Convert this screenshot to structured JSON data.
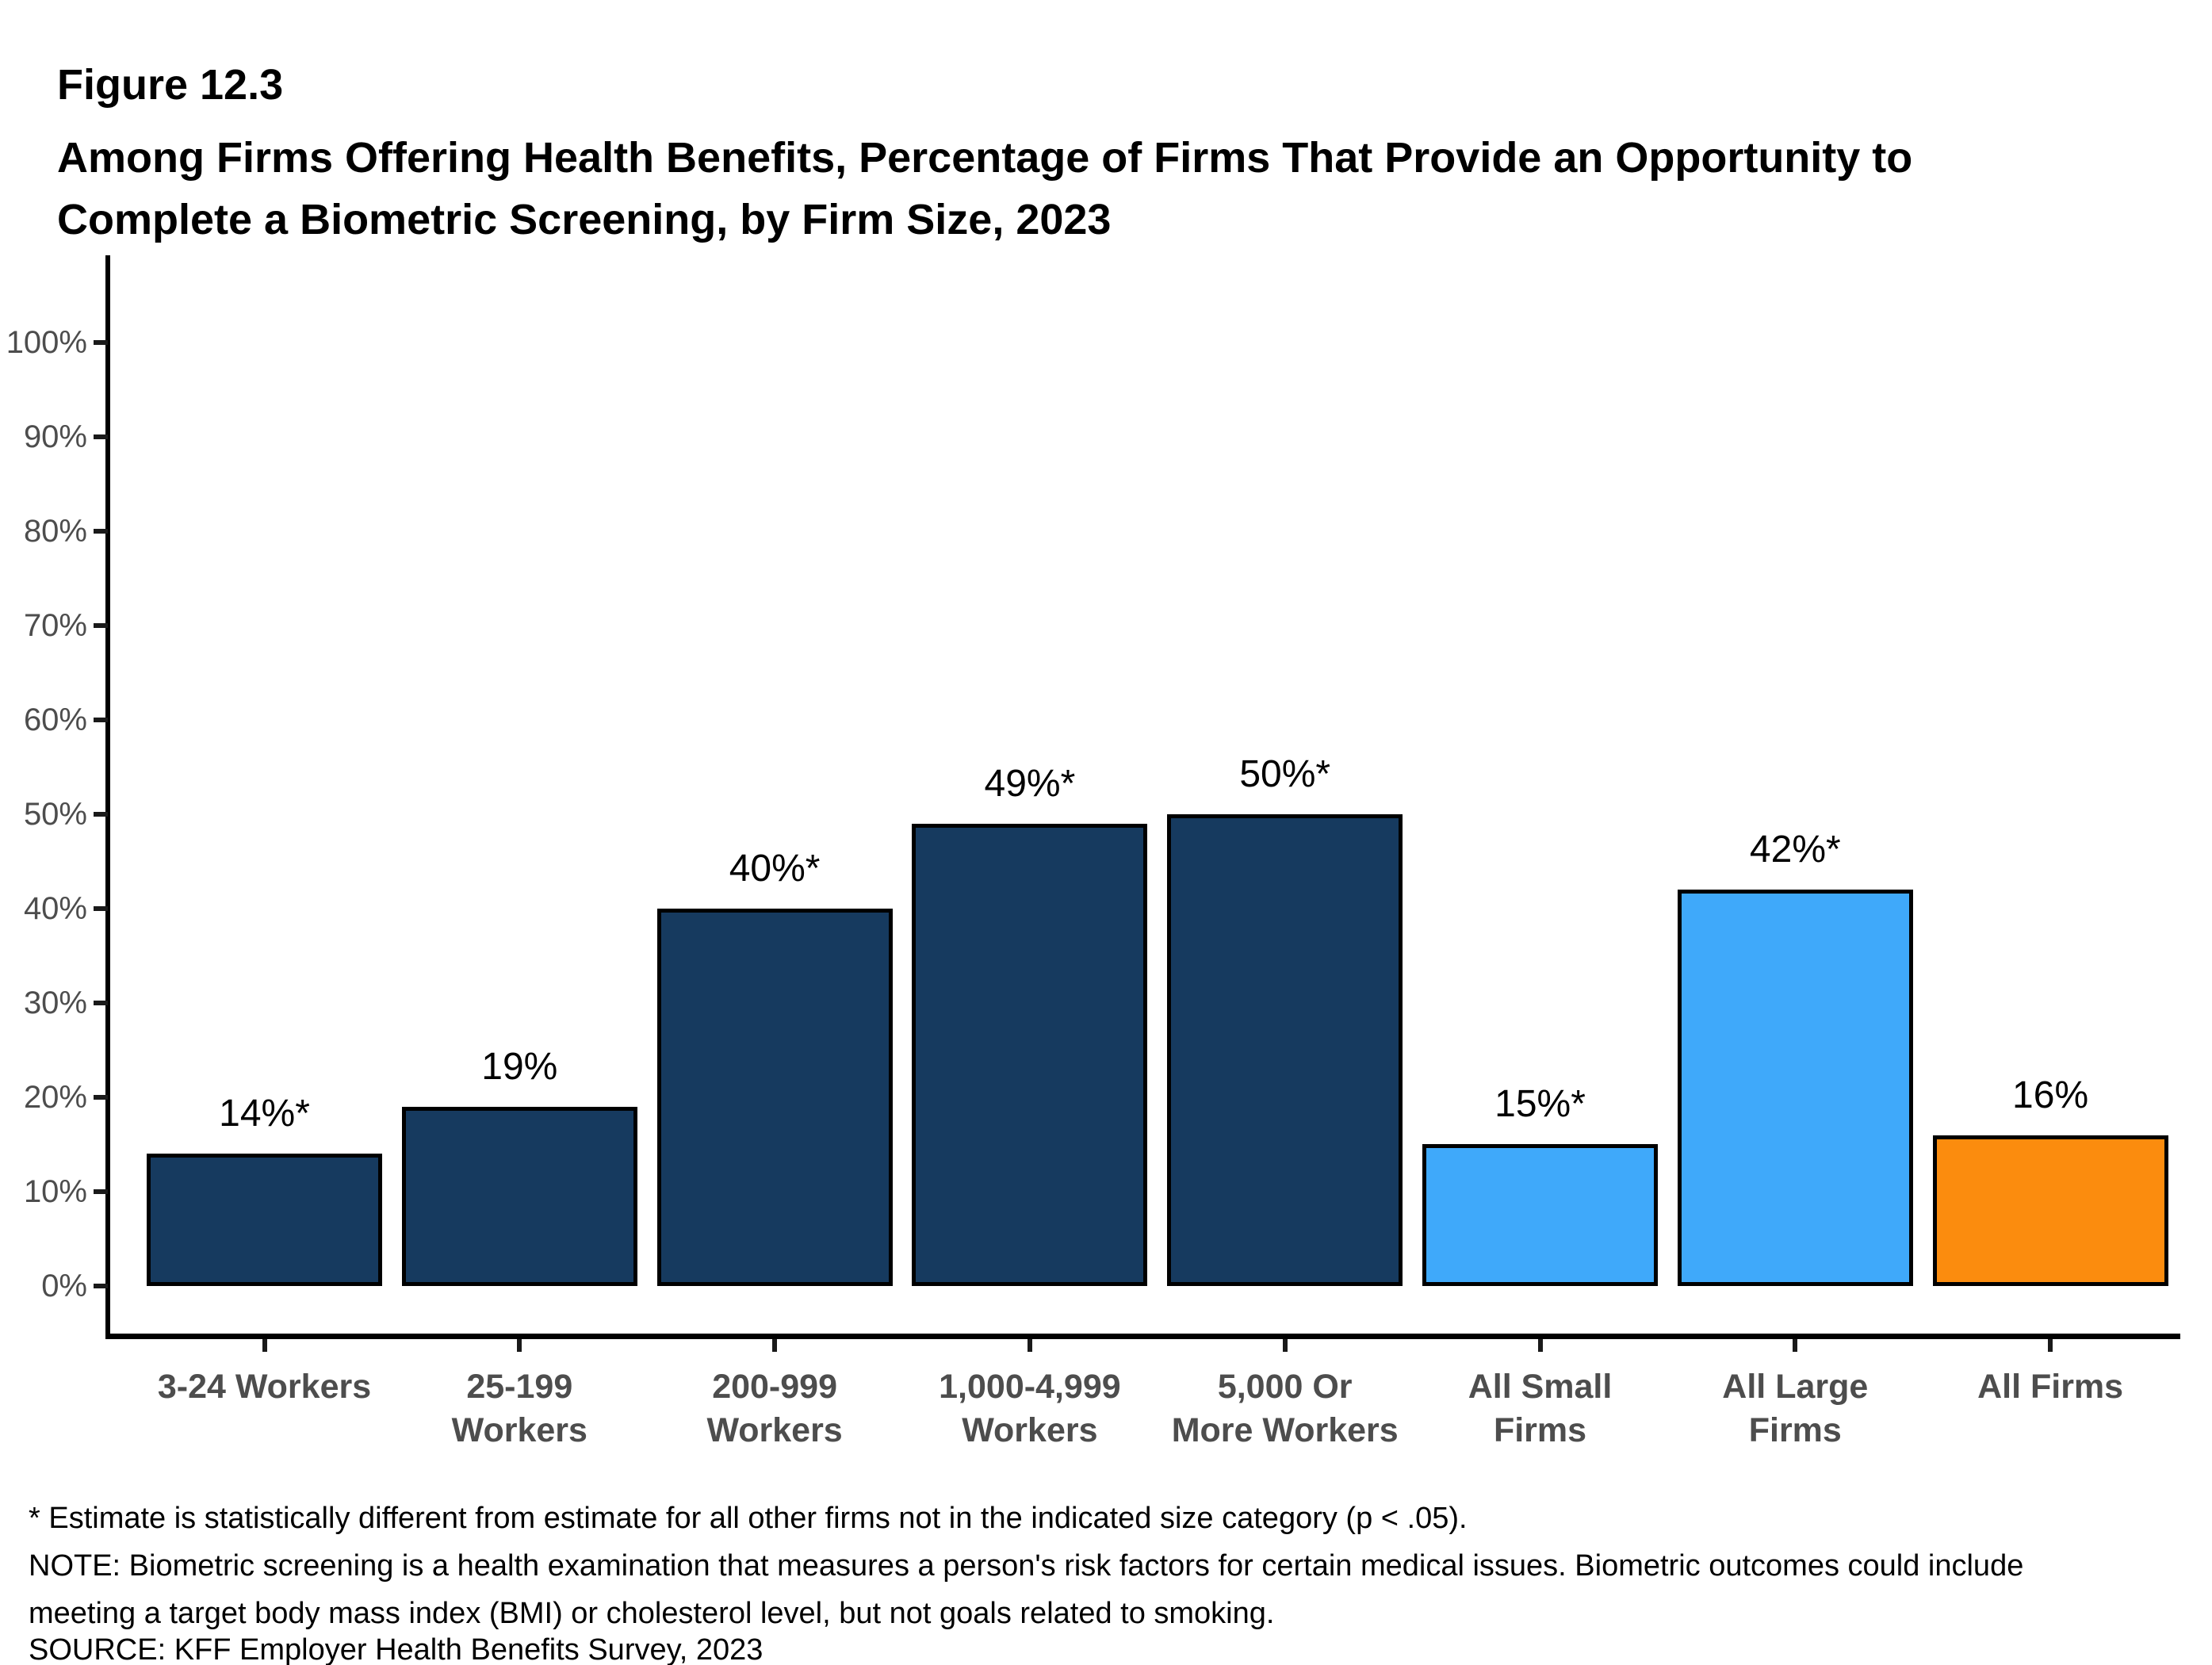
{
  "figure": {
    "label": "Figure 12.3",
    "title_line1": "Among Firms Offering Health Benefits, Percentage of Firms That Provide an Opportunity to",
    "title_line2": "Complete a Biometric Screening, by Firm Size, 2023"
  },
  "chart_data": {
    "type": "bar",
    "title": "Among Firms Offering Health Benefits, Percentage of Firms That Provide an Opportunity to Complete a Biometric Screening, by Firm Size, 2023",
    "categories": [
      "3-24 Workers",
      "25-199\nWorkers",
      "200-999\nWorkers",
      "1,000-4,999\nWorkers",
      "5,000 Or\nMore Workers",
      "All Small\nFirms",
      "All Large\nFirms",
      "All Firms"
    ],
    "values": [
      14,
      19,
      40,
      49,
      50,
      15,
      42,
      16
    ],
    "bar_labels": [
      "14%*",
      "19%",
      "40%*",
      "49%*",
      "50%*",
      "15%*",
      "42%*",
      "16%"
    ],
    "bar_colors": [
      "#163A5F",
      "#163A5F",
      "#163A5F",
      "#163A5F",
      "#163A5F",
      "#3FA9FA",
      "#3FA9FA",
      "#FB8C0E"
    ],
    "xlabel": "",
    "ylabel": "",
    "ylim": [
      0,
      100
    ],
    "ytick_step": 10,
    "ytick_labels": [
      "0%",
      "10%",
      "20%",
      "30%",
      "40%",
      "50%",
      "60%",
      "70%",
      "80%",
      "90%",
      "100%"
    ],
    "grid": false,
    "legend_position": "none"
  },
  "footnotes": {
    "asterisk": "* Estimate is statistically different from estimate for all other firms not in the indicated size category (p < .05).",
    "note_line1": "NOTE: Biometric screening is a health examination that measures a person's risk factors for certain medical issues. Biometric outcomes could include",
    "note_line2": "meeting a target body mass index (BMI) or cholesterol level, but not goals related to smoking.",
    "source": "SOURCE: KFF Employer Health Benefits Survey, 2023"
  },
  "colors": {
    "navy": "#163A5F",
    "light_blue": "#3FA9FA",
    "orange": "#FB8C0E",
    "axis": "#000000",
    "tick_label": "#4d4d4d"
  }
}
